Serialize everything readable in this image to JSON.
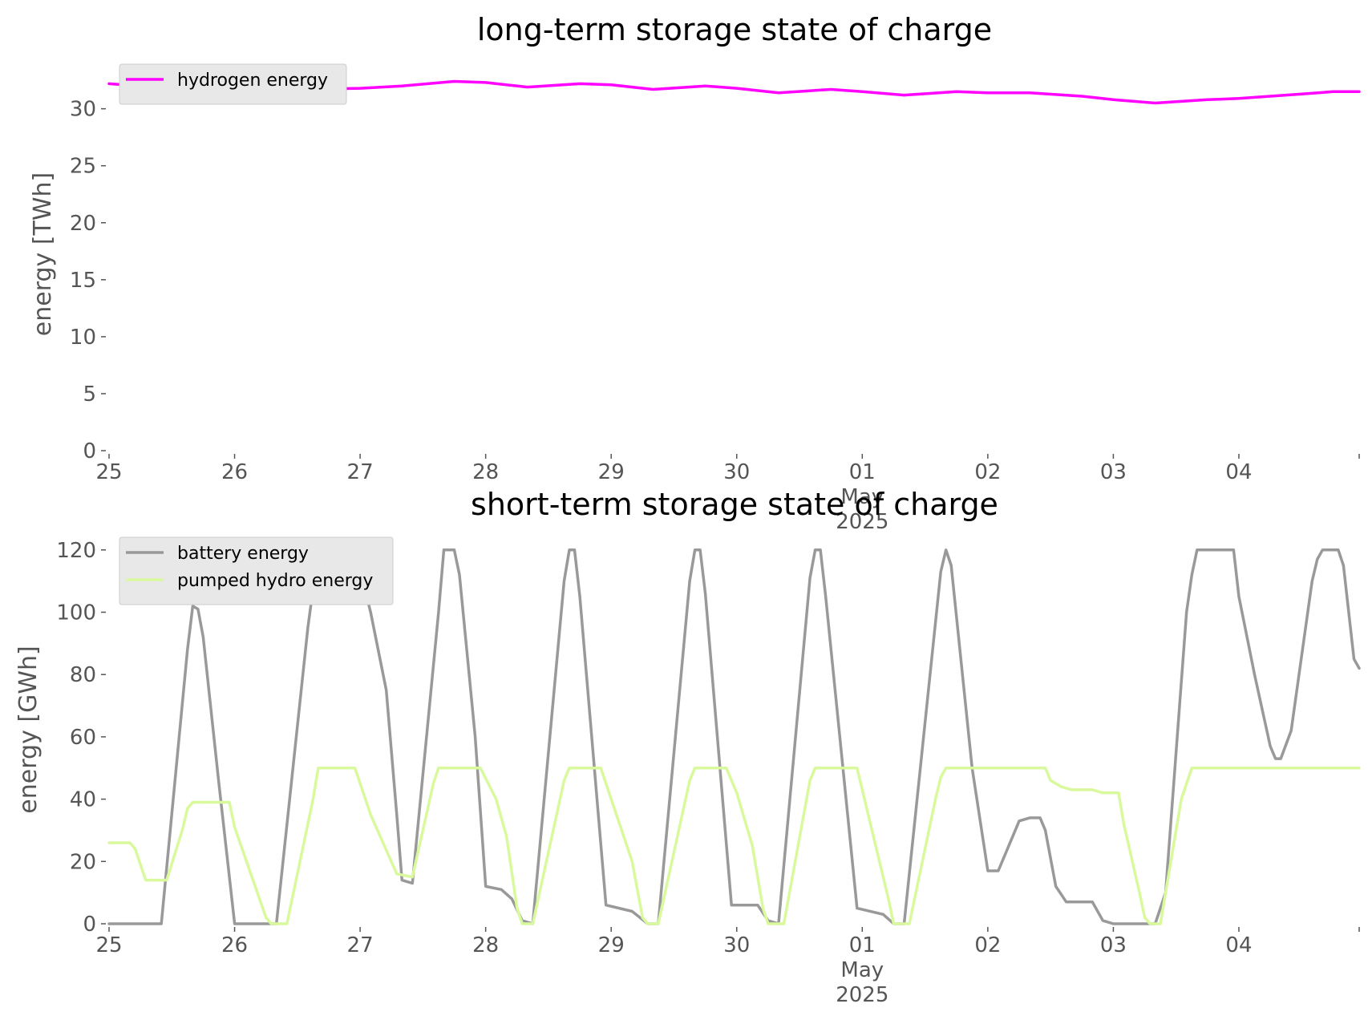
{
  "chart_data": [
    {
      "type": "line",
      "title": "long-term storage state of charge",
      "xlabel": "",
      "ylabel": "energy [TWh]",
      "xlim": [
        "2025-04-25",
        "2025-05-04 23:00"
      ],
      "ylim": [
        0,
        33
      ],
      "yticks": [
        0,
        5,
        10,
        15,
        20,
        25,
        30
      ],
      "xtick_labels": [
        "25",
        "26",
        "27",
        "28",
        "29",
        "30",
        "01",
        "02",
        "03",
        "04"
      ],
      "xtick_sublabels": {
        "month": "May",
        "year": "2025"
      },
      "grid": false,
      "legend": "top-left",
      "series": [
        {
          "name": "hydrogen energy",
          "color": "#ff00ff",
          "points": [
            [
              "2025-04-25 00:00",
              32.2
            ],
            [
              "2025-04-25 12:00",
              31.8
            ],
            [
              "2025-04-26 00:00",
              31.6
            ],
            [
              "2025-04-26 12:00",
              31.7
            ],
            [
              "2025-04-27 00:00",
              31.8
            ],
            [
              "2025-04-27 08:00",
              32.0
            ],
            [
              "2025-04-27 18:00",
              32.4
            ],
            [
              "2025-04-28 00:00",
              32.3
            ],
            [
              "2025-04-28 08:00",
              31.9
            ],
            [
              "2025-04-28 18:00",
              32.2
            ],
            [
              "2025-04-29 00:00",
              32.1
            ],
            [
              "2025-04-29 08:00",
              31.7
            ],
            [
              "2025-04-29 18:00",
              32.0
            ],
            [
              "2025-04-30 00:00",
              31.8
            ],
            [
              "2025-04-30 08:00",
              31.4
            ],
            [
              "2025-04-30 18:00",
              31.7
            ],
            [
              "2025-05-01 00:00",
              31.5
            ],
            [
              "2025-05-01 08:00",
              31.2
            ],
            [
              "2025-05-01 18:00",
              31.5
            ],
            [
              "2025-05-02 00:00",
              31.4
            ],
            [
              "2025-05-02 08:00",
              31.4
            ],
            [
              "2025-05-02 18:00",
              31.1
            ],
            [
              "2025-05-03 00:00",
              30.8
            ],
            [
              "2025-05-03 08:00",
              30.5
            ],
            [
              "2025-05-03 18:00",
              30.8
            ],
            [
              "2025-05-04 00:00",
              30.9
            ],
            [
              "2025-05-04 12:00",
              31.3
            ],
            [
              "2025-05-04 18:00",
              31.5
            ],
            [
              "2025-05-04 23:00",
              31.5
            ]
          ]
        }
      ]
    },
    {
      "type": "line",
      "title": "short-term storage state of charge",
      "xlabel": "",
      "ylabel": "energy [GWh]",
      "xlim": [
        "2025-04-25",
        "2025-05-04 23:00"
      ],
      "ylim": [
        0,
        122
      ],
      "yticks": [
        0,
        20,
        40,
        60,
        80,
        100,
        120
      ],
      "xtick_labels": [
        "25",
        "26",
        "27",
        "28",
        "29",
        "30",
        "01",
        "02",
        "03",
        "04"
      ],
      "xtick_sublabels": {
        "month": "May",
        "year": "2025"
      },
      "grid": false,
      "legend": "top-left",
      "series": [
        {
          "name": "battery energy",
          "color": "#999999",
          "points": [
            [
              "2025-04-25 00:00",
              0
            ],
            [
              "2025-04-25 10:00",
              0
            ],
            [
              "2025-04-25 15:00",
              88
            ],
            [
              "2025-04-25 16:00",
              102
            ],
            [
              "2025-04-25 17:00",
              101
            ],
            [
              "2025-04-25 18:00",
              92
            ],
            [
              "2025-04-25 21:00",
              45
            ],
            [
              "2025-04-26 00:00",
              0
            ],
            [
              "2025-04-26 08:00",
              0
            ],
            [
              "2025-04-26 14:00",
              95
            ],
            [
              "2025-04-26 16:00",
              120
            ],
            [
              "2025-04-26 18:00",
              120
            ],
            [
              "2025-04-26 20:00",
              105
            ],
            [
              "2025-04-26 22:00",
              106
            ],
            [
              "2025-04-26 23:00",
              120
            ],
            [
              "2025-04-27 02:00",
              100
            ],
            [
              "2025-04-27 05:00",
              75
            ],
            [
              "2025-04-27 07:00",
              35
            ],
            [
              "2025-04-27 08:00",
              14
            ],
            [
              "2025-04-27 10:00",
              13
            ],
            [
              "2025-04-27 15:00",
              100
            ],
            [
              "2025-04-27 16:00",
              120
            ],
            [
              "2025-04-27 18:00",
              120
            ],
            [
              "2025-04-27 19:00",
              112
            ],
            [
              "2025-04-27 22:00",
              60
            ],
            [
              "2025-04-28 00:00",
              12
            ],
            [
              "2025-04-28 03:00",
              11
            ],
            [
              "2025-04-28 05:00",
              8
            ],
            [
              "2025-04-28 07:00",
              1
            ],
            [
              "2025-04-28 09:00",
              0
            ],
            [
              "2025-04-28 15:00",
              110
            ],
            [
              "2025-04-28 16:00",
              120
            ],
            [
              "2025-04-28 17:00",
              120
            ],
            [
              "2025-04-28 18:00",
              105
            ],
            [
              "2025-04-28 23:00",
              6
            ],
            [
              "2025-04-29 04:00",
              4
            ],
            [
              "2025-04-29 07:00",
              0
            ],
            [
              "2025-04-29 09:00",
              0
            ],
            [
              "2025-04-29 15:00",
              110
            ],
            [
              "2025-04-29 16:00",
              120
            ],
            [
              "2025-04-29 17:00",
              120
            ],
            [
              "2025-04-29 18:00",
              106
            ],
            [
              "2025-04-29 23:00",
              6
            ],
            [
              "2025-04-30 04:00",
              6
            ],
            [
              "2025-04-30 06:00",
              1
            ],
            [
              "2025-04-30 08:00",
              0
            ],
            [
              "2025-04-30 14:00",
              111
            ],
            [
              "2025-04-30 15:00",
              120
            ],
            [
              "2025-04-30 16:00",
              120
            ],
            [
              "2025-04-30 17:00",
              105
            ],
            [
              "2025-04-30 23:00",
              5
            ],
            [
              "2025-05-01 04:00",
              3
            ],
            [
              "2025-05-01 06:00",
              0
            ],
            [
              "2025-05-01 08:00",
              0
            ],
            [
              "2025-05-01 15:00",
              113
            ],
            [
              "2025-05-01 16:00",
              120
            ],
            [
              "2025-05-01 17:00",
              115
            ],
            [
              "2025-05-01 21:00",
              50
            ],
            [
              "2025-05-02 00:00",
              17
            ],
            [
              "2025-05-02 02:00",
              17
            ],
            [
              "2025-05-02 06:00",
              33
            ],
            [
              "2025-05-02 08:00",
              34
            ],
            [
              "2025-05-02 10:00",
              34
            ],
            [
              "2025-05-02 11:00",
              30
            ],
            [
              "2025-05-02 13:00",
              12
            ],
            [
              "2025-05-02 15:00",
              7
            ],
            [
              "2025-05-02 20:00",
              7
            ],
            [
              "2025-05-02 22:00",
              1
            ],
            [
              "2025-05-03 00:00",
              0
            ],
            [
              "2025-05-03 08:00",
              0
            ],
            [
              "2025-05-03 10:00",
              10
            ],
            [
              "2025-05-03 14:00",
              100
            ],
            [
              "2025-05-03 15:00",
              112
            ],
            [
              "2025-05-03 16:00",
              120
            ],
            [
              "2025-05-03 23:00",
              120
            ],
            [
              "2025-05-04 00:00",
              105
            ],
            [
              "2025-05-04 03:00",
              80
            ],
            [
              "2025-05-04 06:00",
              57
            ],
            [
              "2025-05-04 07:00",
              53
            ],
            [
              "2025-05-04 08:00",
              53
            ],
            [
              "2025-05-04 10:00",
              62
            ],
            [
              "2025-05-04 14:00",
              110
            ],
            [
              "2025-05-04 15:00",
              117
            ],
            [
              "2025-05-04 16:00",
              120
            ],
            [
              "2025-05-04 19:00",
              120
            ],
            [
              "2025-05-04 20:00",
              115
            ],
            [
              "2025-05-04 22:00",
              85
            ],
            [
              "2025-05-04 23:00",
              82
            ]
          ]
        },
        {
          "name": "pumped hydro energy",
          "color": "#d9f99d",
          "points": [
            [
              "2025-04-25 00:00",
              26
            ],
            [
              "2025-04-25 04:00",
              26
            ],
            [
              "2025-04-25 05:00",
              24
            ],
            [
              "2025-04-25 07:00",
              14
            ],
            [
              "2025-04-25 11:00",
              14
            ],
            [
              "2025-04-25 14:00",
              30
            ],
            [
              "2025-04-25 15:00",
              37
            ],
            [
              "2025-04-25 16:00",
              39
            ],
            [
              "2025-04-25 23:00",
              39
            ],
            [
              "2025-04-26 00:00",
              31
            ],
            [
              "2025-04-26 06:00",
              2
            ],
            [
              "2025-04-26 07:00",
              0
            ],
            [
              "2025-04-26 10:00",
              0
            ],
            [
              "2025-04-26 15:00",
              40
            ],
            [
              "2025-04-26 16:00",
              50
            ],
            [
              "2025-04-26 23:00",
              50
            ],
            [
              "2025-04-27 02:00",
              35
            ],
            [
              "2025-04-27 07:00",
              16
            ],
            [
              "2025-04-27 10:00",
              15
            ],
            [
              "2025-04-27 14:00",
              45
            ],
            [
              "2025-04-27 15:00",
              50
            ],
            [
              "2025-04-27 23:00",
              50
            ],
            [
              "2025-04-28 02:00",
              40
            ],
            [
              "2025-04-28 04:00",
              28
            ],
            [
              "2025-04-28 06:00",
              5
            ],
            [
              "2025-04-28 07:00",
              0
            ],
            [
              "2025-04-28 09:00",
              0
            ],
            [
              "2025-04-28 15:00",
              46
            ],
            [
              "2025-04-28 16:00",
              50
            ],
            [
              "2025-04-28 22:00",
              50
            ],
            [
              "2025-04-29 00:00",
              40
            ],
            [
              "2025-04-29 04:00",
              20
            ],
            [
              "2025-04-29 06:00",
              2
            ],
            [
              "2025-04-29 07:00",
              0
            ],
            [
              "2025-04-29 09:00",
              0
            ],
            [
              "2025-04-29 15:00",
              46
            ],
            [
              "2025-04-29 16:00",
              50
            ],
            [
              "2025-04-29 22:00",
              50
            ],
            [
              "2025-04-30 00:00",
              42
            ],
            [
              "2025-04-30 03:00",
              25
            ],
            [
              "2025-04-30 05:00",
              5
            ],
            [
              "2025-04-30 06:00",
              0
            ],
            [
              "2025-04-30 09:00",
              0
            ],
            [
              "2025-04-30 14:00",
              46
            ],
            [
              "2025-04-30 15:00",
              50
            ],
            [
              "2025-04-30 23:00",
              50
            ],
            [
              "2025-05-01 05:00",
              8
            ],
            [
              "2025-05-01 06:00",
              0
            ],
            [
              "2025-05-01 09:00",
              0
            ],
            [
              "2025-05-01 14:00",
              40
            ],
            [
              "2025-05-01 15:00",
              47
            ],
            [
              "2025-05-01 16:00",
              50
            ],
            [
              "2025-05-02 11:00",
              50
            ],
            [
              "2025-05-02 12:00",
              46
            ],
            [
              "2025-05-02 14:00",
              44
            ],
            [
              "2025-05-02 16:00",
              43
            ],
            [
              "2025-05-02 20:00",
              43
            ],
            [
              "2025-05-02 22:00",
              42
            ],
            [
              "2025-05-03 01:00",
              42
            ],
            [
              "2025-05-03 02:00",
              32
            ],
            [
              "2025-05-03 05:00",
              10
            ],
            [
              "2025-05-03 06:00",
              2
            ],
            [
              "2025-05-03 07:00",
              0
            ],
            [
              "2025-05-03 09:00",
              0
            ],
            [
              "2025-05-03 13:00",
              40
            ],
            [
              "2025-05-03 15:00",
              50
            ],
            [
              "2025-05-04 23:00",
              50
            ]
          ]
        }
      ]
    }
  ]
}
